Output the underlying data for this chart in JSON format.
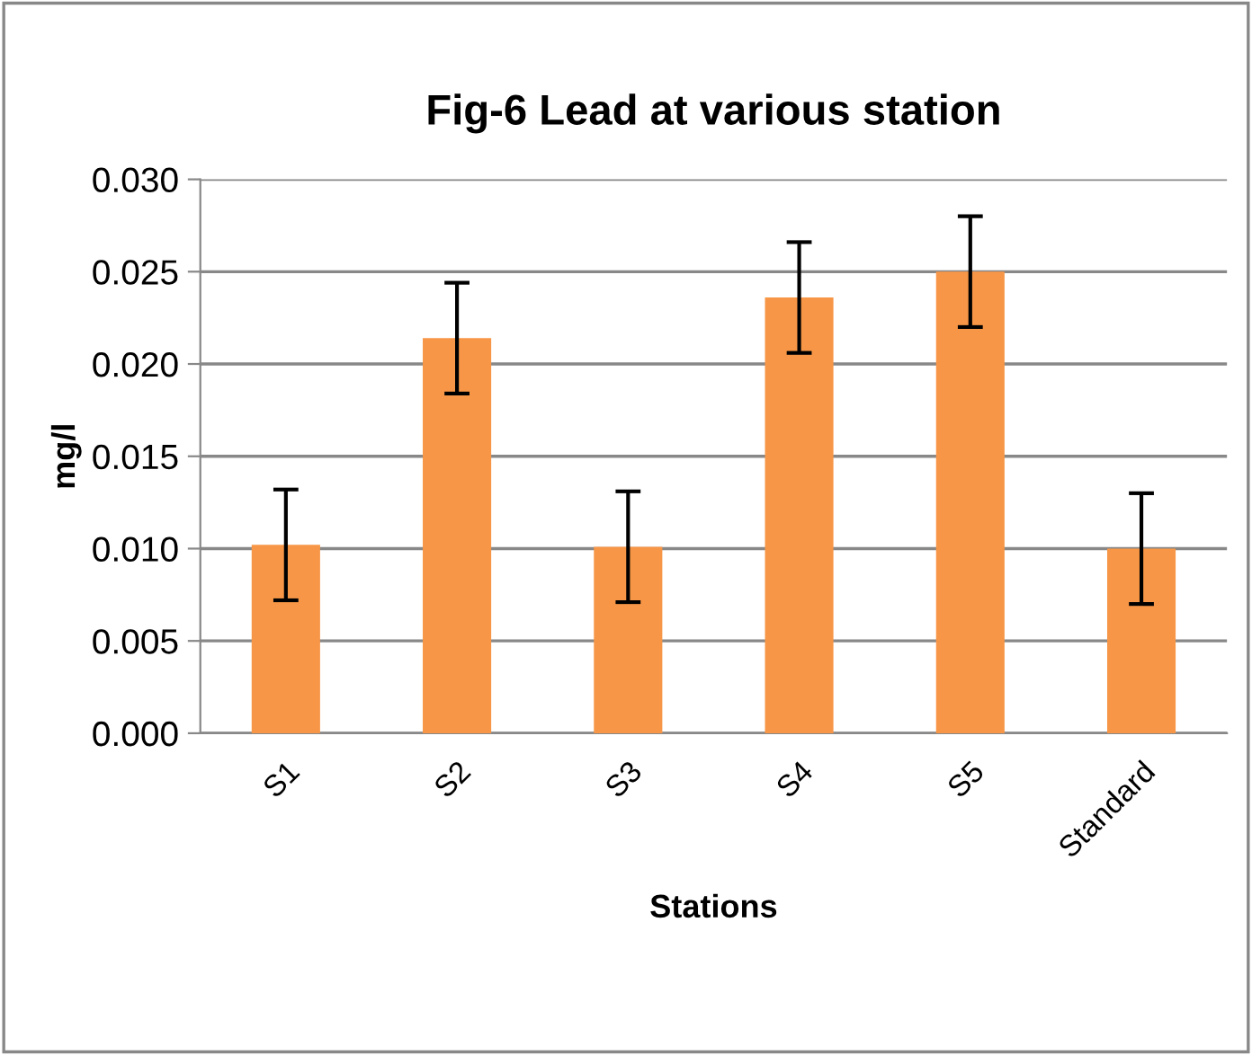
{
  "chart_data": {
    "type": "bar",
    "title": "Fig-6 Lead at various station",
    "xlabel": "Stations",
    "ylabel": "mg/l",
    "categories": [
      "S1",
      "S2",
      "S3",
      "S4",
      "S5",
      "Standard"
    ],
    "values": [
      0.0102,
      0.0214,
      0.0101,
      0.0236,
      0.025,
      0.01
    ],
    "errors": [
      0.003,
      0.003,
      0.003,
      0.003,
      0.003,
      0.003
    ],
    "color": "#f79646",
    "ylim": [
      0,
      0.03
    ],
    "yticks": [
      {
        "value": 0,
        "label": "0.000"
      },
      {
        "value": 0.005,
        "label": "0.005"
      },
      {
        "value": 0.01,
        "label": "0.010"
      },
      {
        "value": 0.015,
        "label": "0.015"
      },
      {
        "value": 0.02,
        "label": "0.020"
      },
      {
        "value": 0.025,
        "label": "0.025"
      },
      {
        "value": 0.03,
        "label": "0.030"
      }
    ],
    "grid": "y",
    "legend": false
  }
}
